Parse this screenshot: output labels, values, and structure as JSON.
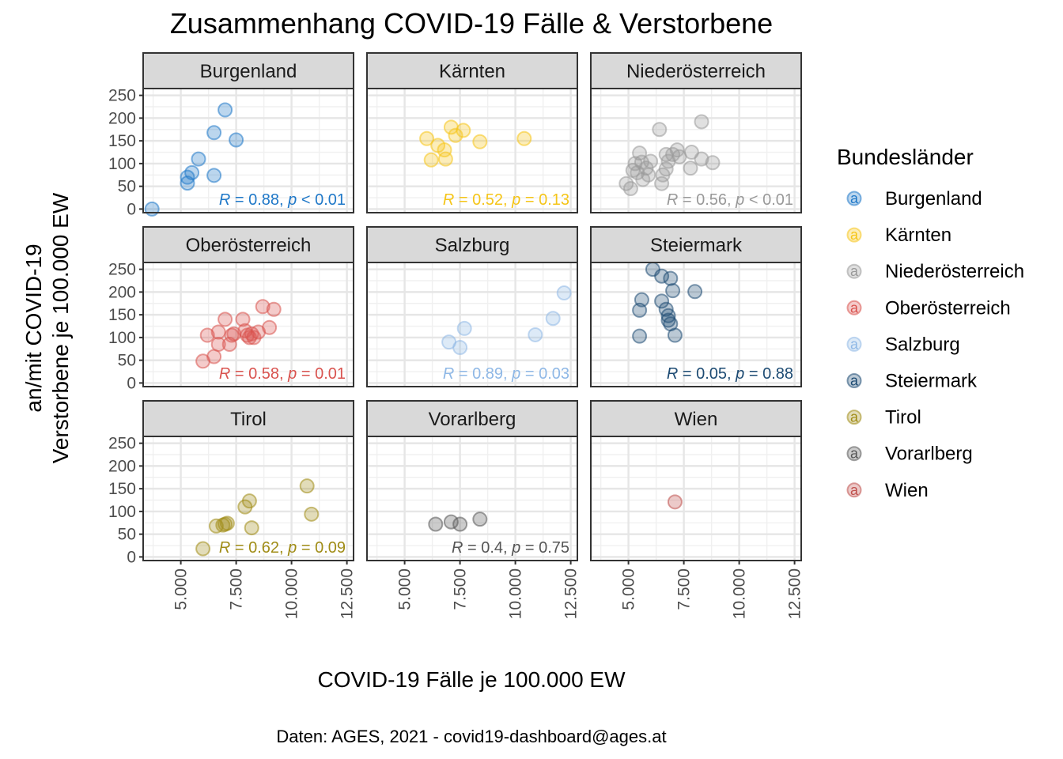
{
  "chart_data": {
    "type": "scatter",
    "title": "Zusammenhang COVID-19 Fälle & Verstorbene",
    "xlabel": "COVID-19 Fälle je 100.000 EW",
    "ylabel_lines": [
      "an/mit COVID-19",
      "Verstorbene je 100.000 EW"
    ],
    "caption": "Daten: AGES, 2021 - covid19-dashboard@ages.at",
    "xlim": [
      3300,
      12800
    ],
    "ylim": [
      -8,
      265
    ],
    "x_ticks": [
      5000,
      7500,
      10000,
      12500
    ],
    "x_tick_labels": [
      "5.000",
      "7.500",
      "10.000",
      "12.500"
    ],
    "y_ticks": [
      0,
      50,
      100,
      150,
      200,
      250
    ],
    "y_tick_labels": [
      "0",
      "50",
      "100",
      "150",
      "200",
      "250"
    ],
    "grid": true,
    "legend": {
      "title": "Bundesländer",
      "position": "right",
      "key_glyph": "a",
      "entries": [
        "Burgenland",
        "Kärnten",
        "Niederösterreich",
        "Oberösterreich",
        "Salzburg",
        "Steiermark",
        "Tirol",
        "Vorarlberg",
        "Wien"
      ]
    },
    "panels": [
      {
        "name": "Burgenland",
        "color": "#1f78c8",
        "stat": {
          "r": "0.88",
          "p_op": "<",
          "p": "0.01"
        },
        "points": [
          [
            3700,
            0
          ],
          [
            5300,
            57
          ],
          [
            5300,
            70
          ],
          [
            5500,
            80
          ],
          [
            5800,
            110
          ],
          [
            6500,
            168
          ],
          [
            6500,
            74
          ],
          [
            7000,
            218
          ],
          [
            7500,
            152
          ]
        ]
      },
      {
        "name": "Kärnten",
        "color": "#f5c518",
        "stat": {
          "r": "0.52",
          "p_op": "=",
          "p": "0.13"
        },
        "points": [
          [
            6000,
            155
          ],
          [
            6200,
            108
          ],
          [
            6500,
            140
          ],
          [
            6800,
            130
          ],
          [
            6850,
            110
          ],
          [
            7100,
            180
          ],
          [
            7300,
            162
          ],
          [
            7650,
            173
          ],
          [
            8400,
            148
          ],
          [
            10400,
            155
          ]
        ]
      },
      {
        "name": "Niederösterreich",
        "color": "#999999",
        "stat": {
          "r": "0.56",
          "p_op": "<",
          "p": "0.01"
        },
        "points": [
          [
            4900,
            56
          ],
          [
            5100,
            45
          ],
          [
            5200,
            85
          ],
          [
            5300,
            100
          ],
          [
            5400,
            80
          ],
          [
            5500,
            123
          ],
          [
            5600,
            103
          ],
          [
            5650,
            65
          ],
          [
            5800,
            90
          ],
          [
            5900,
            75
          ],
          [
            6000,
            105
          ],
          [
            6400,
            175
          ],
          [
            6500,
            56
          ],
          [
            6550,
            75
          ],
          [
            6700,
            120
          ],
          [
            6700,
            88
          ],
          [
            6800,
            105
          ],
          [
            7000,
            120
          ],
          [
            7200,
            130
          ],
          [
            7300,
            115
          ],
          [
            7800,
            90
          ],
          [
            7850,
            125
          ],
          [
            8300,
            110
          ],
          [
            8300,
            192
          ],
          [
            8800,
            102
          ]
        ]
      },
      {
        "name": "Oberösterreich",
        "color": "#d9534f",
        "stat": {
          "r": "0.58",
          "p_op": "=",
          "p": "0.01"
        },
        "points": [
          [
            6000,
            48
          ],
          [
            6200,
            105
          ],
          [
            6500,
            58
          ],
          [
            6700,
            112
          ],
          [
            6700,
            85
          ],
          [
            7000,
            140
          ],
          [
            7200,
            85
          ],
          [
            7300,
            105
          ],
          [
            7400,
            108
          ],
          [
            7800,
            140
          ],
          [
            7900,
            115
          ],
          [
            8000,
            105
          ],
          [
            8100,
            100
          ],
          [
            8200,
            108
          ],
          [
            8300,
            100
          ],
          [
            8500,
            112
          ],
          [
            8700,
            168
          ],
          [
            9000,
            122
          ],
          [
            9200,
            162
          ]
        ]
      },
      {
        "name": "Salzburg",
        "color": "#8fb8e6",
        "stat": {
          "r": "0.89",
          "p_op": "=",
          "p": "0.03"
        },
        "points": [
          [
            7000,
            90
          ],
          [
            7500,
            78
          ],
          [
            7700,
            120
          ],
          [
            10900,
            106
          ],
          [
            11700,
            142
          ],
          [
            12200,
            198
          ]
        ]
      },
      {
        "name": "Steiermark",
        "color": "#1d4b73",
        "stat": {
          "r": "0.05",
          "p_op": "=",
          "p": "0.88"
        },
        "points": [
          [
            5500,
            103
          ],
          [
            5500,
            160
          ],
          [
            5600,
            183
          ],
          [
            6100,
            250
          ],
          [
            6500,
            235
          ],
          [
            6500,
            180
          ],
          [
            6700,
            162
          ],
          [
            6800,
            148
          ],
          [
            6800,
            138
          ],
          [
            6900,
            230
          ],
          [
            6900,
            130
          ],
          [
            7000,
            203
          ],
          [
            7100,
            105
          ],
          [
            8000,
            201
          ]
        ]
      },
      {
        "name": "Tirol",
        "color": "#a08c16",
        "stat": {
          "r": "0.62",
          "p_op": "=",
          "p": "0.09"
        },
        "points": [
          [
            6000,
            18
          ],
          [
            6600,
            68
          ],
          [
            6900,
            70
          ],
          [
            7000,
            72
          ],
          [
            7100,
            74
          ],
          [
            7900,
            110
          ],
          [
            8100,
            123
          ],
          [
            8200,
            64
          ],
          [
            10700,
            156
          ],
          [
            10900,
            94
          ]
        ]
      },
      {
        "name": "Vorarlberg",
        "color": "#555555",
        "stat": {
          "r": "0.4",
          "p_op": "=",
          "p": "0.75"
        },
        "points": [
          [
            6400,
            72
          ],
          [
            7100,
            77
          ],
          [
            7500,
            72
          ],
          [
            8400,
            83
          ]
        ]
      },
      {
        "name": "Wien",
        "color": "#c0504d",
        "stat": {
          "r": "",
          "p_op": "",
          "p": ""
        },
        "points": [
          [
            7100,
            121
          ]
        ]
      }
    ]
  }
}
